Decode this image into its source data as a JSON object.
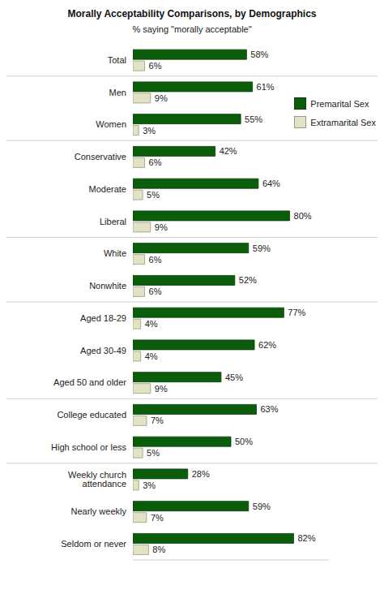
{
  "chart_data": {
    "type": "bar",
    "title": "Morally Acceptability Comparisons, by Demographics",
    "subtitle": "% saying \"morally acceptable\"",
    "orientation": "horizontal",
    "categories": [
      "Total",
      "Men",
      "Women",
      "Conservative",
      "Moderate",
      "Liberal",
      "White",
      "Nonwhite",
      "Aged 18-29",
      "Aged 30-49",
      "Aged 50 and older",
      "College educated",
      "High school or less",
      "Weekly church attendance",
      "Nearly weekly",
      "Seldom or never"
    ],
    "series": [
      {
        "name": "Premarital Sex",
        "color": "#0b5d0b",
        "values": [
          58,
          61,
          55,
          42,
          64,
          80,
          59,
          52,
          77,
          62,
          45,
          63,
          50,
          28,
          59,
          82
        ],
        "value_labels": [
          "58%",
          "61%",
          "55%",
          "42%",
          "64%",
          "80%",
          "59%",
          "52%",
          "77%",
          "62%",
          "45%",
          "63%",
          "50%",
          "28%",
          "59%",
          "82%"
        ]
      },
      {
        "name": "Extramarital Sex",
        "color": "#e2e2c4",
        "values": [
          6,
          9,
          3,
          6,
          5,
          9,
          6,
          6,
          4,
          4,
          9,
          7,
          5,
          3,
          7,
          8
        ],
        "value_labels": [
          "6%",
          "9%",
          "3%",
          "6%",
          "5%",
          "9%",
          "6%",
          "6%",
          "4%",
          "4%",
          "9%",
          "7%",
          "5%",
          "3%",
          "7%",
          "8%"
        ]
      }
    ],
    "xlim": [
      0,
      100
    ],
    "tick_labels": false,
    "data_labels": true,
    "legend": "top right",
    "grid": false
  }
}
